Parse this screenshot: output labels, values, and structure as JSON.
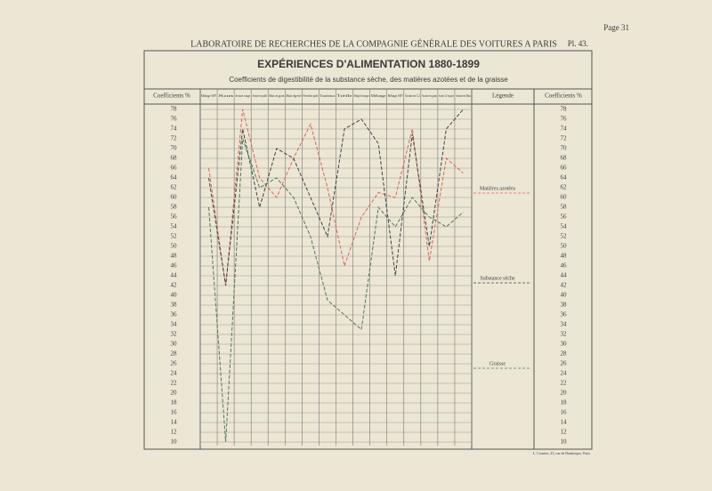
{
  "page": {
    "number": "Page 31",
    "header": "LABORATOIRE DE RECHERCHES DE LA COMPAGNIE GÉNÉRALE DES VOITURES A PARIS",
    "plate": "Pl. 43.",
    "footer": "L. Courtier, 43, rue de Dunkerque, Paris"
  },
  "chart_data": {
    "type": "line",
    "title": "EXPÉRIENCES D'ALIMENTATION 1880-1899",
    "subtitle": "Coefficients de digestibilité de la substance sèche, des matières azotées et de la graisse",
    "y_label": "Coefficients %",
    "legend_title": "Légende",
    "categories": [
      "Mélange 1887",
      "Son",
      "Avoine rouge",
      "Avoine en paille",
      "Maïs en grain",
      "Maïs égrené",
      "Féverolles paille",
      "Tourteaux",
      "Trèfle",
      "Mélange de fourrages",
      "Mélange",
      "Mélange 1897",
      "Avoine en 1/2",
      "Avoine en grain",
      "Avoine 1/2 en grain",
      "Avoine en Maïs"
    ],
    "series": [
      {
        "name": "Matières azotées",
        "color": "#d9695a",
        "values": [
          66,
          42,
          78,
          64,
          60,
          68,
          75,
          62,
          46,
          56,
          61,
          60,
          74,
          47,
          68,
          65
        ]
      },
      {
        "name": "Substance sèche",
        "color": "#3f4747",
        "values": [
          64,
          42,
          74,
          58,
          70,
          68,
          60,
          52,
          74,
          76,
          71,
          44,
          73,
          50,
          74,
          78
        ]
      },
      {
        "name": "Graisse",
        "color": "#4f7a5c",
        "values": [
          58,
          10,
          72,
          62,
          64,
          60,
          52,
          39,
          36,
          33,
          58,
          54,
          60,
          56,
          54,
          57
        ]
      }
    ],
    "ylim": [
      10,
      78
    ],
    "yticks": [
      10,
      12,
      14,
      16,
      18,
      20,
      22,
      24,
      26,
      28,
      30,
      32,
      34,
      36,
      38,
      40,
      42,
      44,
      46,
      48,
      50,
      52,
      54,
      56,
      58,
      60,
      62,
      64,
      66,
      68,
      70,
      72,
      74,
      76,
      78
    ],
    "grid": true
  }
}
